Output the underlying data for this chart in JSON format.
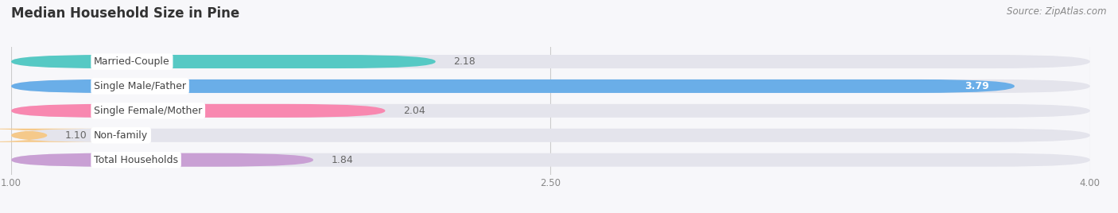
{
  "title": "Median Household Size in Pine",
  "source": "Source: ZipAtlas.com",
  "categories": [
    "Married-Couple",
    "Single Male/Father",
    "Single Female/Mother",
    "Non-family",
    "Total Households"
  ],
  "values": [
    2.18,
    3.79,
    2.04,
    1.1,
    1.84
  ],
  "bar_colors": [
    "#56c9c4",
    "#6aaee8",
    "#f888b0",
    "#f5c98a",
    "#c9a0d4"
  ],
  "value_colors": [
    "#555555",
    "#ffffff",
    "#555555",
    "#555555",
    "#555555"
  ],
  "xmin": 1.0,
  "xmax": 4.0,
  "xticks": [
    1.0,
    2.5,
    4.0
  ],
  "background_color": "#f7f7fa",
  "bar_background": "#e4e4ec",
  "title_fontsize": 12,
  "label_fontsize": 9,
  "value_fontsize": 9,
  "source_fontsize": 8.5
}
